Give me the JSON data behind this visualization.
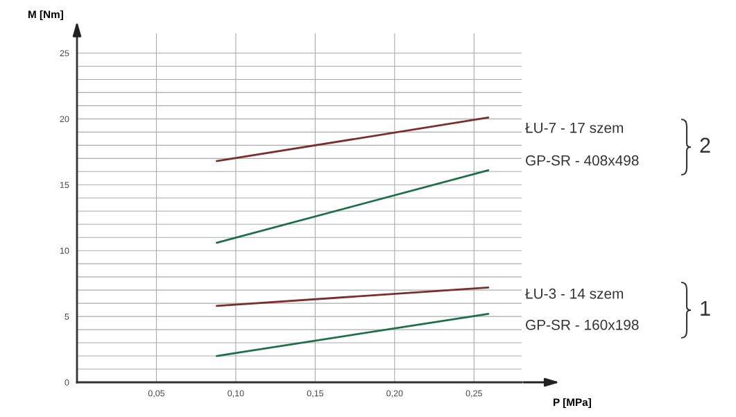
{
  "chart_data": {
    "type": "line",
    "xlabel": "P [MPa]",
    "ylabel": "M [Nm]",
    "xlim": [
      0,
      0.28
    ],
    "ylim": [
      0,
      26.5
    ],
    "xticks": [
      {
        "value": 0.05,
        "label": "0,05"
      },
      {
        "value": 0.1,
        "label": "0,10"
      },
      {
        "value": 0.15,
        "label": "0,15"
      },
      {
        "value": 0.2,
        "label": "0,20"
      },
      {
        "value": 0.25,
        "label": "0,25"
      }
    ],
    "yticks": [
      0,
      {
        "value": 1,
        "label": null
      },
      {
        "value": 2,
        "label": null
      },
      {
        "value": 3,
        "label": null
      },
      {
        "value": 4,
        "label": null
      },
      5,
      {
        "value": 6,
        "label": null
      },
      {
        "value": 7,
        "label": null
      },
      {
        "value": 8,
        "label": null
      },
      {
        "value": 9,
        "label": null
      },
      10,
      {
        "value": 11,
        "label": null
      },
      {
        "value": 12,
        "label": null
      },
      {
        "value": 13,
        "label": null
      },
      {
        "value": 14,
        "label": null
      },
      15,
      {
        "value": 16,
        "label": null
      },
      {
        "value": 17,
        "label": null
      },
      {
        "value": 18,
        "label": null
      },
      {
        "value": 19,
        "label": null
      },
      20,
      {
        "value": 21,
        "label": null
      },
      {
        "value": 22,
        "label": null
      },
      {
        "value": 23,
        "label": null
      },
      {
        "value": 24,
        "label": null
      },
      25
    ],
    "grid": true,
    "line_style": "solid",
    "marker": "none",
    "x": [
      0.088,
      0.259
    ],
    "series": [
      {
        "color": "#7a2e2e",
        "values": [
          16.8,
          20.1
        ]
      },
      {
        "color": "#1f6e4a",
        "values": [
          10.6,
          16.1
        ]
      },
      {
        "color": "#7a2e2e",
        "values": [
          5.8,
          7.2
        ]
      },
      {
        "color": "#1f6e4a",
        "values": [
          2.0,
          5.2
        ]
      }
    ],
    "annotations": [
      "ŁU-7 - 17 szem",
      "GP-SR - 408x498",
      "2",
      "ŁU-3 - 14 szem",
      "GP-SR - 160x198",
      "1"
    ]
  }
}
